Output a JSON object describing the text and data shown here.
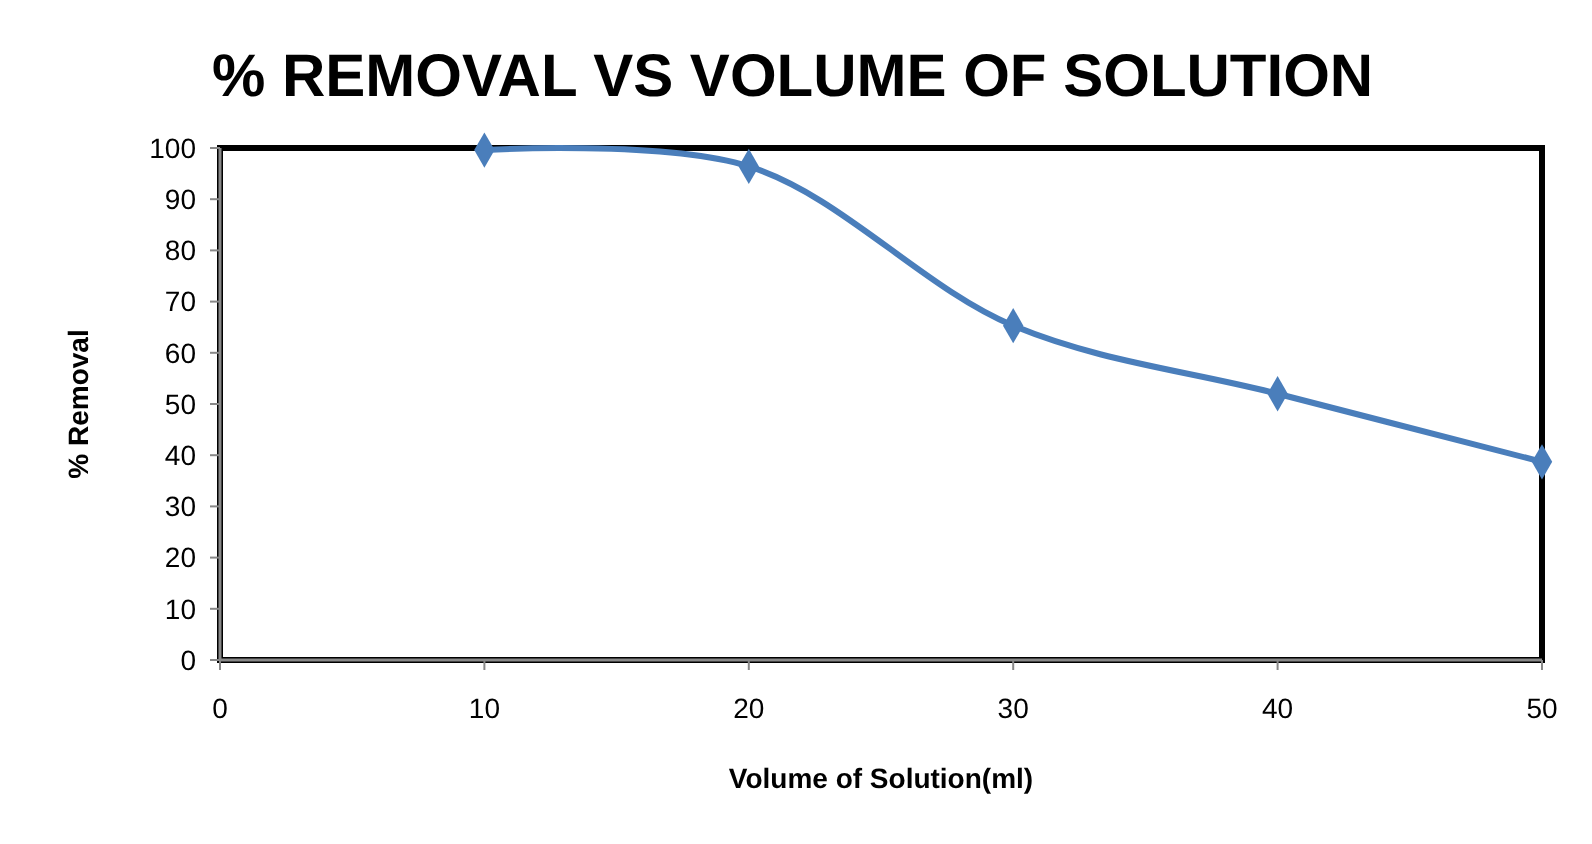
{
  "chart_data": {
    "type": "line",
    "title": "% REMOVAL VS VOLUME OF SOLUTION",
    "xlabel": "Volume of Solution(ml)",
    "ylabel": "% Removal",
    "x": [
      10,
      20,
      30,
      40,
      50
    ],
    "series": [
      {
        "color": "#4a7ebb",
        "values": [
          99.6,
          96.4,
          65.3,
          52,
          38.7
        ]
      }
    ],
    "xlim": [
      0,
      50
    ],
    "xticks": [
      0,
      10,
      20,
      30,
      40,
      50
    ],
    "ylim": [
      0,
      100
    ],
    "yticks": [
      0,
      10,
      20,
      30,
      40,
      50,
      60,
      70,
      80,
      90,
      100
    ],
    "marker": "diamond",
    "line_style": "solid",
    "grid": false
  }
}
